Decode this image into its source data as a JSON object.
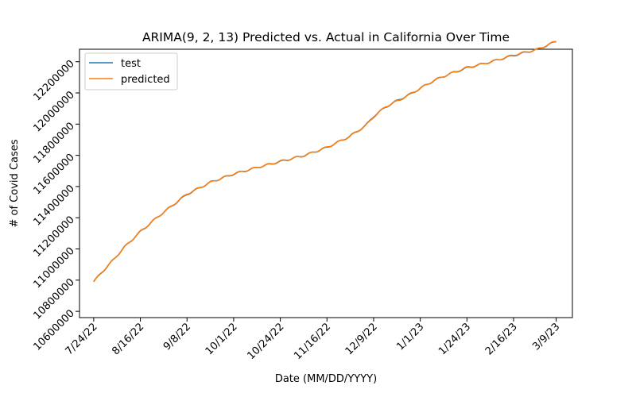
{
  "chart_data": {
    "type": "line",
    "title": "ARIMA(9, 2, 13) Predicted vs. Actual in California Over Time",
    "xlabel": "Date (MM/DD/YYYY)",
    "ylabel": "# of Covid Cases",
    "x_tick_labels": [
      "7/24/22",
      "8/16/22",
      "9/8/22",
      "10/1/22",
      "10/24/22",
      "11/16/22",
      "12/9/22",
      "1/1/23",
      "1/24/23",
      "2/16/23",
      "3/9/23"
    ],
    "y_tick_labels": [
      "10600000",
      "10800000",
      "11000000",
      "11200000",
      "11400000",
      "11600000",
      "11800000",
      "12000000",
      "12200000"
    ],
    "y_ticks": [
      10600000,
      10800000,
      11000000,
      11200000,
      11400000,
      11600000,
      11800000,
      12000000,
      12200000
    ],
    "xlim": [
      "2022-07-17",
      "2023-03-17"
    ],
    "ylim": [
      10560000,
      12280000
    ],
    "legend_position": "upper-left",
    "grid": false,
    "series": [
      {
        "name": "test",
        "color": "#1f77b4",
        "x": [
          "2022-07-24",
          "2022-07-28",
          "2022-08-02",
          "2022-08-08",
          "2022-08-16",
          "2022-08-25",
          "2022-09-08",
          "2022-09-20",
          "2022-10-01",
          "2022-10-12",
          "2022-10-24",
          "2022-11-05",
          "2022-11-16",
          "2022-11-27",
          "2022-12-05",
          "2022-12-09",
          "2022-12-15",
          "2022-12-22",
          "2022-12-27",
          "2023-01-01",
          "2023-01-08",
          "2023-01-15",
          "2023-01-24",
          "2023-02-05",
          "2023-02-16",
          "2023-02-28",
          "2023-03-09"
        ],
        "y": [
          10790000,
          10850000,
          10920000,
          11010000,
          11110000,
          11210000,
          11350000,
          11430000,
          11480000,
          11520000,
          11560000,
          11600000,
          11650000,
          11720000,
          11790000,
          11850000,
          11910000,
          11960000,
          11990000,
          12030000,
          12080000,
          12120000,
          12160000,
          12200000,
          12240000,
          12280000,
          12330000
        ]
      },
      {
        "name": "predicted",
        "color": "#ff7f0e",
        "x": [
          "2022-07-24",
          "2022-07-28",
          "2022-08-02",
          "2022-08-08",
          "2022-08-16",
          "2022-08-25",
          "2022-09-08",
          "2022-09-20",
          "2022-10-01",
          "2022-10-12",
          "2022-10-24",
          "2022-11-05",
          "2022-11-16",
          "2022-11-27",
          "2022-12-05",
          "2022-12-09",
          "2022-12-15",
          "2022-12-22",
          "2022-12-27",
          "2023-01-01",
          "2023-01-08",
          "2023-01-15",
          "2023-01-24",
          "2023-02-05",
          "2023-02-16",
          "2023-02-28",
          "2023-03-09"
        ],
        "y": [
          10790000,
          10851000,
          10919000,
          11008000,
          11111000,
          11209000,
          11352000,
          11428000,
          11481000,
          11519000,
          11561000,
          11598000,
          11651000,
          11718000,
          11788000,
          11846000,
          11912000,
          11955000,
          11992000,
          12028000,
          12081000,
          12119000,
          12162000,
          12198000,
          12242000,
          12279000,
          12331000
        ]
      }
    ]
  }
}
